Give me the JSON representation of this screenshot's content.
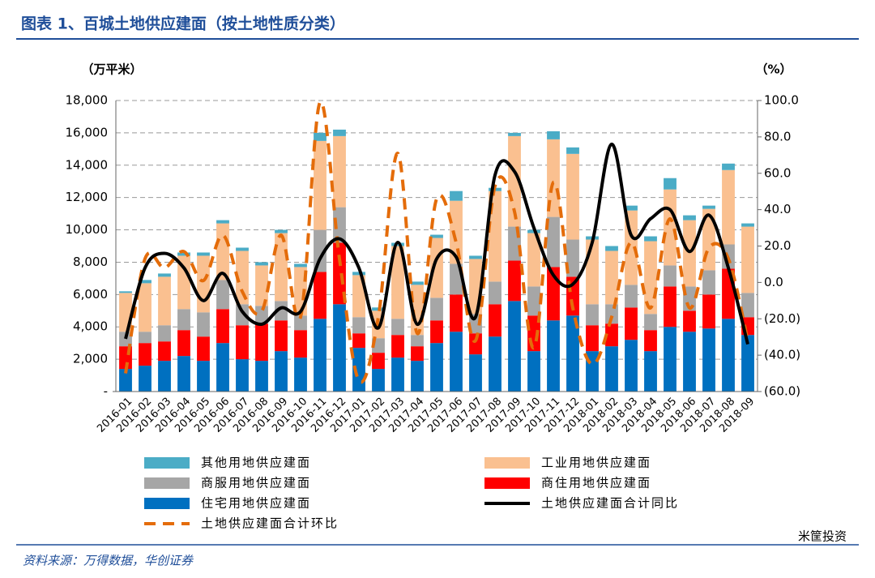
{
  "chart_data": {
    "type": "stacked-bar-line",
    "title": "图表 1、百城土地供应建面（按土地性质分类）",
    "y_label": "（万平米）",
    "y2_label": "（%）",
    "source": "资料来源：万得数据，华创证券",
    "watermark": "米筐投资",
    "categories": [
      "2016-01",
      "2016-02",
      "2016-03",
      "2016-04",
      "2016-05",
      "2016-06",
      "2016-07",
      "2016-08",
      "2016-09",
      "2016-10",
      "2016-11",
      "2016-12",
      "2017-01",
      "2017-02",
      "2017-03",
      "2017-04",
      "2017-05",
      "2017-06",
      "2017-07",
      "2017-08",
      "2017-09",
      "2017-10",
      "2017-11",
      "2017-12",
      "2018-01",
      "2018-02",
      "2018-03",
      "2018-04",
      "2018-05",
      "2018-06",
      "2018-07",
      "2018-08",
      "2018-09"
    ],
    "series": [
      {
        "name": "住宅用地供应建面",
        "color": "#0070c0",
        "values": [
          1400,
          1600,
          1900,
          2200,
          1900,
          3000,
          2000,
          1900,
          2500,
          2100,
          4500,
          5400,
          2700,
          1400,
          2100,
          1900,
          3000,
          3700,
          2300,
          3400,
          5600,
          2500,
          4400,
          4700,
          2500,
          2800,
          3200,
          2500,
          4000,
          3700,
          3900,
          4500,
          3500
        ]
      },
      {
        "name": "商住用地供应建面",
        "color": "#ff0000",
        "values": [
          1400,
          1400,
          1200,
          1600,
          1500,
          2100,
          2100,
          2300,
          1900,
          1700,
          2900,
          3800,
          900,
          1000,
          1400,
          900,
          1400,
          2300,
          1300,
          2000,
          2500,
          2200,
          3300,
          2400,
          1600,
          1400,
          2000,
          1300,
          2500,
          1300,
          2100,
          3100,
          1100
        ]
      },
      {
        "name": "商服用地供应建面",
        "color": "#a6a6a6",
        "values": [
          900,
          700,
          1000,
          1300,
          1500,
          1800,
          1300,
          1100,
          1200,
          900,
          2600,
          2200,
          1000,
          900,
          1000,
          700,
          1400,
          1900,
          1200,
          1400,
          2100,
          1800,
          3100,
          2300,
          1300,
          1200,
          1400,
          1000,
          1300,
          1500,
          1500,
          1500,
          1500
        ]
      },
      {
        "name": "工业用地供应建面",
        "color": "#fac090",
        "values": [
          2400,
          3000,
          3000,
          3300,
          3500,
          3500,
          3300,
          2500,
          4200,
          3000,
          5500,
          4400,
          2600,
          1700,
          4500,
          3100,
          3700,
          3900,
          3400,
          5600,
          5600,
          3300,
          4800,
          5300,
          4000,
          3300,
          4600,
          4500,
          4700,
          4100,
          3800,
          4600,
          4100
        ]
      },
      {
        "name": "其他用地供应建面",
        "color": "#4bacc6",
        "values": [
          100,
          200,
          200,
          200,
          200,
          200,
          200,
          200,
          200,
          200,
          500,
          400,
          200,
          200,
          200,
          200,
          200,
          600,
          200,
          200,
          200,
          200,
          500,
          400,
          200,
          300,
          300,
          300,
          700,
          300,
          200,
          400,
          200
        ]
      },
      {
        "name": "土地供应建面合计环比",
        "color": "#e46c0a",
        "axis": "y2",
        "dashed": true,
        "values": [
          -50,
          13,
          8,
          17,
          1,
          26,
          -5,
          -16,
          26,
          -19,
          99,
          13,
          -54,
          -19,
          71,
          -28,
          46,
          22,
          -32,
          53,
          39,
          -36,
          55,
          -14,
          -45,
          -19,
          22,
          -14,
          35,
          -14,
          19,
          13,
          -32
        ]
      },
      {
        "name": "土地供应建面合计同比",
        "color": "#000000",
        "axis": "y2",
        "dashed": false,
        "values": [
          -31,
          8,
          16,
          8,
          -10,
          5,
          -16,
          -23,
          -14,
          -16,
          13,
          24,
          8,
          -25,
          22,
          -23,
          13,
          14,
          -19,
          59,
          61,
          30,
          4,
          -1,
          22,
          76,
          26,
          35,
          40,
          17,
          37,
          8,
          -34
        ]
      }
    ],
    "ylim": [
      0,
      18000
    ],
    "yticks": [
      {
        "value": 0,
        "label": "-"
      },
      {
        "value": 2000,
        "label": "2,000"
      },
      {
        "value": 4000,
        "label": "4,000"
      },
      {
        "value": 6000,
        "label": "6,000"
      },
      {
        "value": 8000,
        "label": "8,000"
      },
      {
        "value": 10000,
        "label": "10,000"
      },
      {
        "value": 12000,
        "label": "12,000"
      },
      {
        "value": 14000,
        "label": "14,000"
      },
      {
        "value": 16000,
        "label": "16,000"
      },
      {
        "value": 18000,
        "label": "18,000"
      }
    ],
    "y2lim": [
      -60,
      100
    ],
    "y2ticks": [
      {
        "value": -60,
        "label": "(60.0)"
      },
      {
        "value": -40,
        "label": "(40.0)"
      },
      {
        "value": -20,
        "label": "(20.0)"
      },
      {
        "value": 0,
        "label": "0.0"
      },
      {
        "value": 20,
        "label": "20.0"
      },
      {
        "value": 40,
        "label": "40.0"
      },
      {
        "value": 60,
        "label": "60.0"
      },
      {
        "value": 80,
        "label": "80.0"
      },
      {
        "value": 100,
        "label": "100.0"
      }
    ],
    "y2_negative_color": "#ff0000",
    "grid": true
  }
}
